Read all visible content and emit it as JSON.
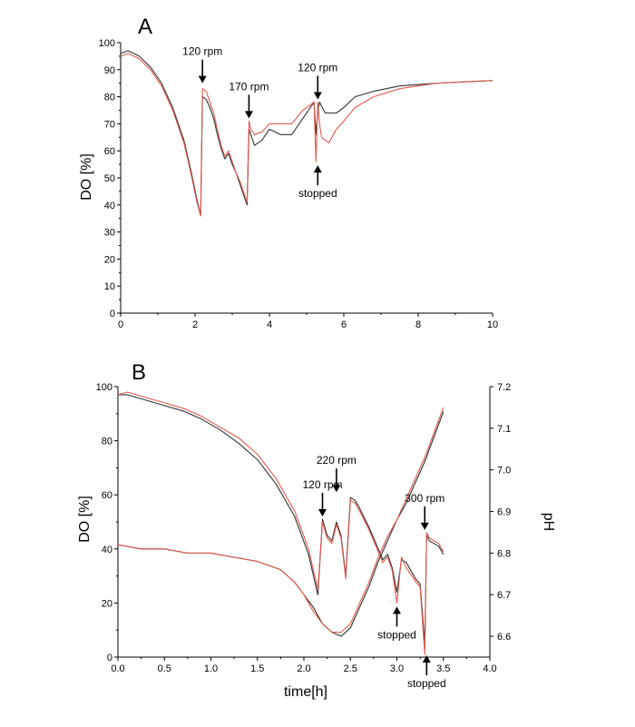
{
  "chart_data": [
    {
      "type": "line",
      "panel_label": "A",
      "xlabel": "",
      "ylabel": "DO [%]",
      "xlim": [
        0,
        10
      ],
      "ylim": [
        0,
        100
      ],
      "x_ticks": [
        "0",
        "2",
        "4",
        "6",
        "8",
        "10"
      ],
      "y_ticks": [
        "0",
        "10",
        "20",
        "30",
        "40",
        "50",
        "60",
        "70",
        "80",
        "90",
        "100"
      ],
      "grid": false,
      "series": [
        {
          "color": "#333333",
          "x": [
            0,
            0.2,
            0.5,
            0.8,
            1.1,
            1.4,
            1.7,
            1.9,
            2.05,
            2.15,
            2.2,
            2.3,
            2.4,
            2.5,
            2.6,
            2.7,
            2.8,
            2.9,
            3.0,
            3.1,
            3.2,
            3.3,
            3.4,
            3.45,
            3.5,
            3.6,
            3.8,
            4.0,
            4.3,
            4.6,
            4.9,
            5.2,
            5.25,
            5.3,
            5.35,
            5.5,
            5.8,
            6.0,
            6.3,
            6.8,
            7.5,
            8.5,
            10
          ],
          "y": [
            96,
            97,
            95,
            91,
            85,
            76,
            64,
            52,
            42,
            36,
            80,
            79,
            76,
            72,
            66,
            61,
            57,
            59,
            55,
            52,
            48,
            44,
            40,
            68,
            66,
            62,
            64,
            68,
            66,
            66,
            72,
            78,
            66,
            75,
            78,
            74,
            74,
            76,
            80,
            82,
            84,
            85,
            86
          ]
        },
        {
          "color": "#e05a4e",
          "x": [
            0,
            0.2,
            0.5,
            0.8,
            1.1,
            1.4,
            1.7,
            1.9,
            2.05,
            2.15,
            2.2,
            2.3,
            2.4,
            2.5,
            2.6,
            2.7,
            2.8,
            2.9,
            3.0,
            3.1,
            3.2,
            3.3,
            3.4,
            3.45,
            3.5,
            3.6,
            3.8,
            4.0,
            4.3,
            4.6,
            4.9,
            5.2,
            5.25,
            5.3,
            5.35,
            5.4,
            5.6,
            5.8,
            6.0,
            6.3,
            6.8,
            7.5,
            8.5,
            10
          ],
          "y": [
            95,
            96,
            94,
            90,
            84,
            75,
            63,
            51,
            41,
            36,
            83,
            82,
            78,
            74,
            68,
            62,
            58,
            60,
            56,
            52,
            49,
            45,
            41,
            71,
            68,
            66,
            67,
            70,
            70,
            70,
            75,
            78,
            56,
            78,
            70,
            65,
            63,
            68,
            71,
            76,
            80,
            83,
            85,
            86
          ]
        }
      ],
      "annotations": [
        {
          "text": "120 rpm",
          "x": 2.2,
          "y": 84,
          "direction": "down"
        },
        {
          "text": "170 rpm",
          "x": 3.45,
          "y": 71,
          "direction": "down"
        },
        {
          "text": "120 rpm",
          "x": 5.3,
          "y": 78,
          "direction": "down"
        },
        {
          "text": "stopped",
          "x": 5.3,
          "y": 56,
          "direction": "up"
        }
      ]
    },
    {
      "type": "line",
      "panel_label": "B",
      "xlabel": "time[h]",
      "ylabel": "DO [%]",
      "ylabel_right": "pH",
      "xlim": [
        0,
        4
      ],
      "ylim": [
        0,
        100
      ],
      "ylim_right": [
        6.55,
        7.2
      ],
      "x_ticks": [
        "0.0",
        "0.5",
        "1.0",
        "1.5",
        "2.0",
        "2.5",
        "3.0",
        "3.5",
        "4.0"
      ],
      "y_ticks": [
        "0",
        "20",
        "40",
        "60",
        "80",
        "100"
      ],
      "y_ticks_right": [
        "6.6",
        "6.7",
        "6.8",
        "6.9",
        "7.0",
        "7.1",
        "7.2"
      ],
      "grid": false,
      "series": [
        {
          "axis": "left",
          "color": "#333333",
          "x": [
            0,
            0.1,
            0.3,
            0.5,
            0.7,
            0.9,
            1.1,
            1.3,
            1.5,
            1.7,
            1.9,
            2.05,
            2.15,
            2.2,
            2.25,
            2.3,
            2.35,
            2.4,
            2.45,
            2.5,
            2.55,
            2.6,
            2.7,
            2.8,
            2.85,
            2.9,
            2.95,
            3.0,
            3.05,
            3.1,
            3.2,
            3.25,
            3.3,
            3.32,
            3.35,
            3.4,
            3.45,
            3.5
          ],
          "y": [
            97,
            97,
            95,
            93,
            91,
            88,
            84,
            79,
            73,
            64,
            52,
            38,
            23,
            51,
            45,
            43,
            50,
            45,
            30,
            59,
            58,
            55,
            48,
            40,
            36,
            38,
            33,
            24,
            36,
            35,
            29,
            27,
            5,
            45,
            43,
            42,
            41,
            38
          ]
        },
        {
          "axis": "left",
          "color": "#e05a4e",
          "x": [
            0,
            0.1,
            0.3,
            0.5,
            0.7,
            0.9,
            1.1,
            1.3,
            1.5,
            1.7,
            1.9,
            2.05,
            2.15,
            2.2,
            2.25,
            2.3,
            2.35,
            2.4,
            2.45,
            2.5,
            2.55,
            2.6,
            2.7,
            2.8,
            2.85,
            2.9,
            2.95,
            3.0,
            3.05,
            3.1,
            3.2,
            3.25,
            3.3,
            3.32,
            3.35,
            3.4,
            3.45,
            3.5
          ],
          "y": [
            97,
            98,
            96,
            94,
            92,
            89,
            85,
            81,
            75,
            66,
            54,
            40,
            25,
            50,
            44,
            42,
            49,
            44,
            29,
            58,
            57,
            54,
            47,
            39,
            35,
            37,
            32,
            20,
            37,
            33,
            28,
            26,
            1,
            46,
            44,
            43,
            42,
            39
          ]
        },
        {
          "axis": "right",
          "color": "#333333",
          "x": [
            0,
            0.25,
            0.5,
            0.75,
            1.0,
            1.25,
            1.5,
            1.75,
            1.9,
            2.0,
            2.1,
            2.2,
            2.3,
            2.4,
            2.5,
            2.6,
            2.7,
            2.8,
            2.9,
            3.0,
            3.1,
            3.2,
            3.3,
            3.4,
            3.5
          ],
          "y": [
            6.82,
            6.81,
            6.81,
            6.8,
            6.8,
            6.79,
            6.78,
            6.76,
            6.73,
            6.7,
            6.67,
            6.63,
            6.61,
            6.6,
            6.62,
            6.67,
            6.72,
            6.78,
            6.83,
            6.88,
            6.92,
            6.97,
            7.02,
            7.08,
            7.14
          ]
        },
        {
          "axis": "right",
          "color": "#e05a4e",
          "x": [
            0,
            0.25,
            0.5,
            0.75,
            1.0,
            1.25,
            1.5,
            1.75,
            1.9,
            2.0,
            2.1,
            2.2,
            2.3,
            2.4,
            2.5,
            2.6,
            2.7,
            2.8,
            2.9,
            3.0,
            3.1,
            3.2,
            3.3,
            3.4,
            3.5
          ],
          "y": [
            6.82,
            6.81,
            6.81,
            6.8,
            6.8,
            6.79,
            6.78,
            6.76,
            6.73,
            6.7,
            6.66,
            6.63,
            6.61,
            6.61,
            6.63,
            6.68,
            6.73,
            6.79,
            6.84,
            6.88,
            6.93,
            6.98,
            7.03,
            7.09,
            7.15
          ]
        }
      ],
      "annotations": [
        {
          "text": "120 rpm",
          "x": 2.2,
          "y": 51,
          "direction": "down"
        },
        {
          "text": "220 rpm",
          "x": 2.35,
          "y": 60,
          "direction": "down"
        },
        {
          "text": "300 rpm",
          "x": 3.3,
          "y": 46,
          "direction": "down"
        },
        {
          "text": "stopped",
          "x": 3.0,
          "y": 20,
          "direction": "up"
        },
        {
          "text": "stopped",
          "x": 3.32,
          "y": 2,
          "direction": "up"
        }
      ]
    }
  ]
}
